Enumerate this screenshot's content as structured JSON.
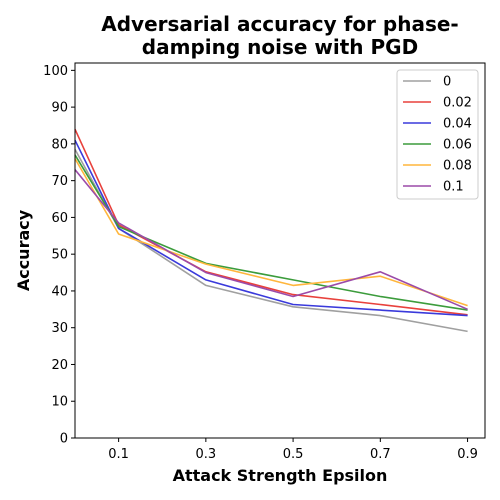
{
  "chart_data": {
    "type": "line",
    "title_lines": [
      "Adversarial accuracy for phase-",
      "damping noise with PGD"
    ],
    "xlabel": "Attack Strength Epsilon",
    "ylabel": "Accuracy",
    "x": [
      0.0,
      0.1,
      0.3,
      0.5,
      0.7,
      0.9
    ],
    "xlim": [
      0.0,
      0.94
    ],
    "ylim": [
      0,
      102
    ],
    "x_ticks": [
      0.1,
      0.3,
      0.5,
      0.7,
      0.9
    ],
    "x_tick_labels": [
      "0.1",
      "0.3",
      "0.5",
      "0.7",
      "0.9"
    ],
    "y_ticks": [
      0,
      10,
      20,
      30,
      40,
      50,
      60,
      70,
      80,
      90,
      100
    ],
    "y_tick_labels": [
      "0",
      "10",
      "20",
      "30",
      "40",
      "50",
      "60",
      "70",
      "80",
      "90",
      "100"
    ],
    "grid": false,
    "legend_position": "top-right",
    "series": [
      {
        "name": "0",
        "color": "#a0a0a0",
        "values": [
          78.5,
          57.0,
          41.5,
          35.7,
          33.3,
          29.0
        ]
      },
      {
        "name": "0.02",
        "color": "#e8413c",
        "values": [
          84.0,
          58.0,
          45.2,
          39.0,
          36.3,
          33.5
        ]
      },
      {
        "name": "0.04",
        "color": "#3a3adb",
        "values": [
          81.0,
          57.0,
          43.0,
          36.3,
          34.8,
          33.3
        ]
      },
      {
        "name": "0.06",
        "color": "#3c9c3c",
        "values": [
          77.0,
          57.5,
          47.5,
          43.0,
          38.5,
          34.8
        ]
      },
      {
        "name": "0.08",
        "color": "#ffb63c",
        "values": [
          76.0,
          55.5,
          47.3,
          41.5,
          44.0,
          36.0
        ]
      },
      {
        "name": "0.1",
        "color": "#9b4aa8",
        "values": [
          73.0,
          58.5,
          45.0,
          38.5,
          45.2,
          35.0
        ]
      }
    ]
  }
}
